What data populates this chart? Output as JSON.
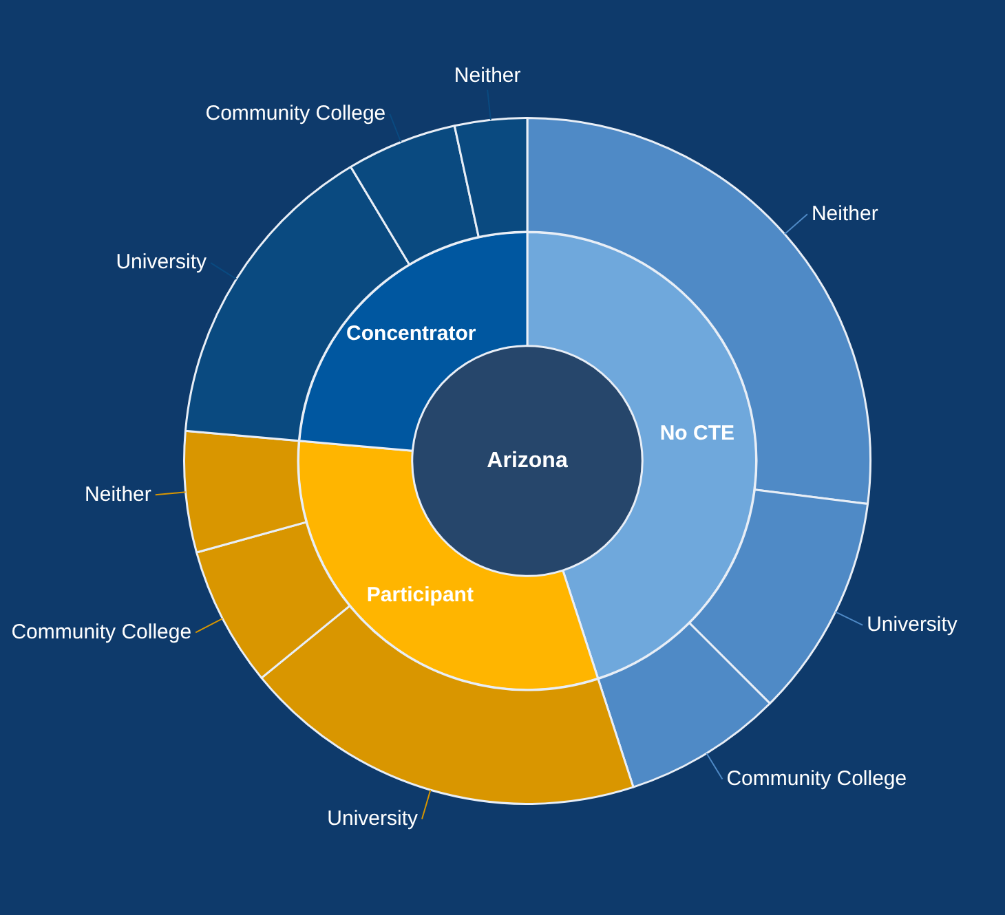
{
  "chart_data": [
    {
      "type": "donut",
      "annotations": [
        "Arizona"
      ],
      "categories": [
        "No CTE",
        "Participant",
        "Concentrator"
      ],
      "values": [
        45,
        31.4,
        23.6
      ],
      "colors": [
        "#6fa8dc",
        "#ffb500",
        "#0057a0"
      ]
    },
    {
      "type": "donut",
      "categories": [
        "Neither",
        "University",
        "Community College",
        "University",
        "Community College",
        "Neither",
        "University",
        "Community College",
        "Neither"
      ],
      "values": [
        27,
        10.5,
        7.5,
        19.1,
        6.6,
        5.7,
        15,
        5.2,
        3.4
      ],
      "colors": [
        "#4f8ac6",
        "#4f8ac6",
        "#4f8ac6",
        "#d99600",
        "#d99600",
        "#d99600",
        "#0a4a80",
        "#0a4a80",
        "#0a4a80"
      ]
    }
  ]
}
